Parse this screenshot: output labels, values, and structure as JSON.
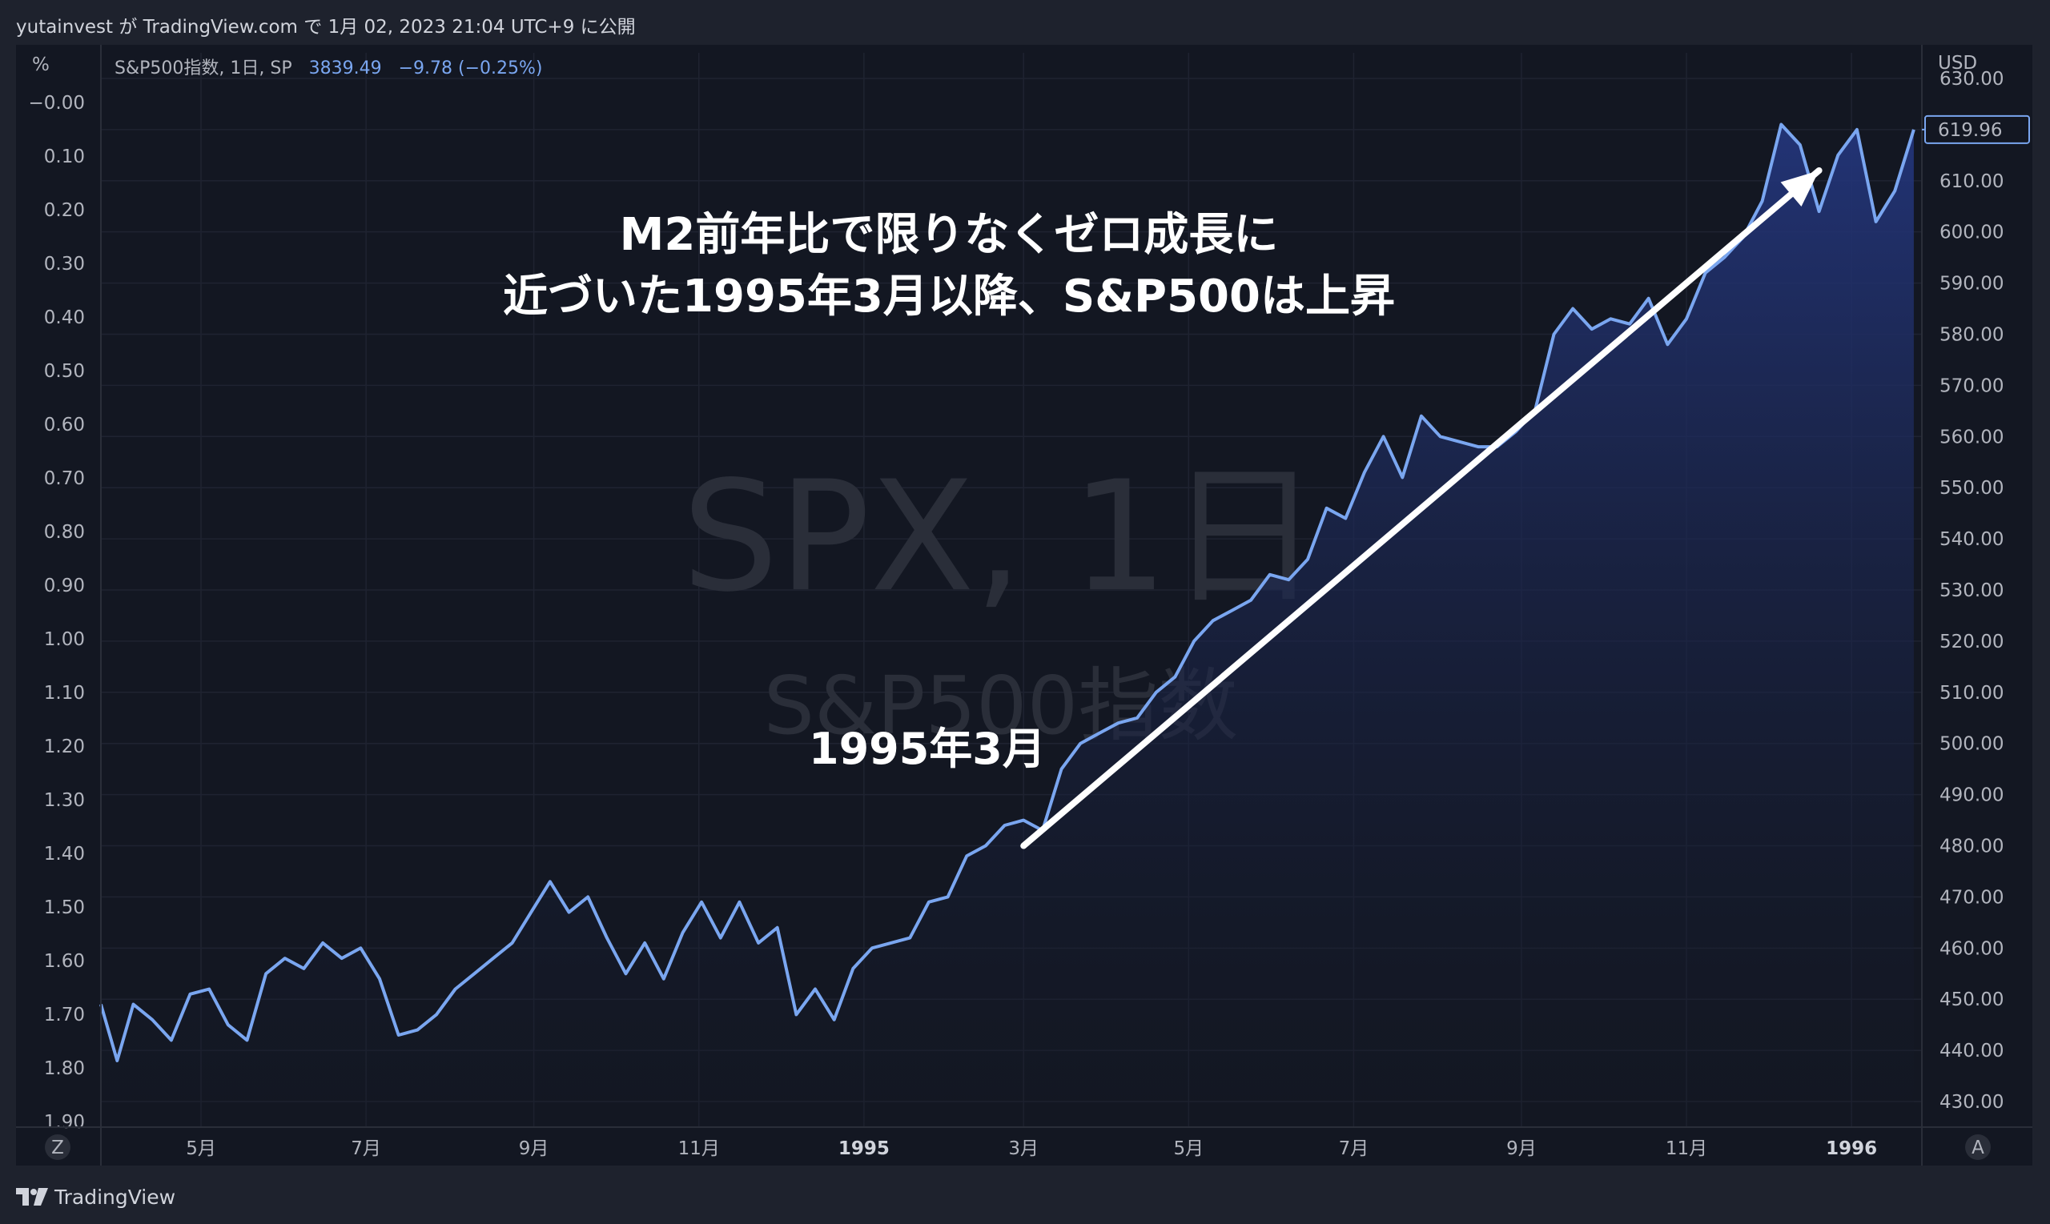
{
  "header": {
    "publisher_line": "yutainvest が TradingView.com で 1月 02, 2023 21:04 UTC+9 に公開"
  },
  "legend": {
    "symbol": "S&P500指数, 1日, SP",
    "last": "3839.49",
    "change": "−9.78 (−0.25%)"
  },
  "watermark": {
    "main": "SPX, 1日",
    "sub": "S&P500指数"
  },
  "left_axis": {
    "unit": "%",
    "labels": [
      "−0.00",
      "0.10",
      "0.20",
      "0.30",
      "0.40",
      "0.50",
      "0.60",
      "0.70",
      "0.80",
      "0.90",
      "1.00",
      "1.10",
      "1.20",
      "1.30",
      "1.40",
      "1.50",
      "1.60",
      "1.70",
      "1.80",
      "1.90"
    ]
  },
  "right_axis": {
    "unit": "USD",
    "labels": [
      "630.00",
      "620.00",
      "610.00",
      "600.00",
      "590.00",
      "580.00",
      "570.00",
      "560.00",
      "550.00",
      "540.00",
      "530.00",
      "520.00",
      "510.00",
      "500.00",
      "490.00",
      "480.00",
      "470.00",
      "460.00",
      "450.00",
      "440.00",
      "430.00"
    ],
    "price_tag": "619.96"
  },
  "time_axis": {
    "labels": [
      {
        "text": "5月",
        "bold": false
      },
      {
        "text": "7月",
        "bold": false
      },
      {
        "text": "9月",
        "bold": false
      },
      {
        "text": "11月",
        "bold": false
      },
      {
        "text": "1995",
        "bold": true
      },
      {
        "text": "3月",
        "bold": false
      },
      {
        "text": "5月",
        "bold": false
      },
      {
        "text": "7月",
        "bold": false
      },
      {
        "text": "9月",
        "bold": false
      },
      {
        "text": "11月",
        "bold": false
      },
      {
        "text": "1996",
        "bold": true
      }
    ],
    "left_button": "Z",
    "right_button": "A"
  },
  "annotations": {
    "headline_line1": "M2前年比で限りなくゼロ成長に",
    "headline_line2": "近づいた1995年3月以降、S&P500は上昇",
    "marker_label": "1995年3月"
  },
  "footer": {
    "brand": "TradingView"
  },
  "colors": {
    "line": "#7aa6f0",
    "area_top": "#1e3070",
    "background": "#131722",
    "legend_value": "#7aa6f0",
    "arrow": "#ffffff"
  },
  "chart_data": {
    "type": "area",
    "title": "S&P500指数, 1日, SP",
    "ylabel": "USD",
    "ylim": [
      425,
      635
    ],
    "x_unit": "trading days",
    "x_range": [
      "1994-04",
      "1996-01"
    ],
    "series": [
      {
        "name": "S&P500指数",
        "points": [
          [
            "1994-03-25",
            449
          ],
          [
            "1994-03-31",
            438
          ],
          [
            "1994-04-06",
            449
          ],
          [
            "1994-04-13",
            446
          ],
          [
            "1994-04-20",
            442
          ],
          [
            "1994-04-27",
            451
          ],
          [
            "1994-05-04",
            452
          ],
          [
            "1994-05-11",
            445
          ],
          [
            "1994-05-18",
            442
          ],
          [
            "1994-05-25",
            455
          ],
          [
            "1994-06-01",
            458
          ],
          [
            "1994-06-08",
            456
          ],
          [
            "1994-06-15",
            461
          ],
          [
            "1994-06-22",
            458
          ],
          [
            "1994-06-29",
            460
          ],
          [
            "1994-07-06",
            454
          ],
          [
            "1994-07-13",
            443
          ],
          [
            "1994-07-20",
            444
          ],
          [
            "1994-07-27",
            447
          ],
          [
            "1994-08-03",
            452
          ],
          [
            "1994-08-10",
            455
          ],
          [
            "1994-08-17",
            458
          ],
          [
            "1994-08-24",
            461
          ],
          [
            "1994-08-31",
            467
          ],
          [
            "1994-09-07",
            473
          ],
          [
            "1994-09-14",
            467
          ],
          [
            "1994-09-21",
            470
          ],
          [
            "1994-09-28",
            462
          ],
          [
            "1994-10-05",
            455
          ],
          [
            "1994-10-12",
            461
          ],
          [
            "1994-10-19",
            454
          ],
          [
            "1994-10-26",
            463
          ],
          [
            "1994-11-02",
            469
          ],
          [
            "1994-11-09",
            462
          ],
          [
            "1994-11-16",
            469
          ],
          [
            "1994-11-23",
            461
          ],
          [
            "1994-11-30",
            464
          ],
          [
            "1994-12-07",
            447
          ],
          [
            "1994-12-14",
            452
          ],
          [
            "1994-12-21",
            446
          ],
          [
            "1994-12-28",
            456
          ],
          [
            "1995-01-04",
            460
          ],
          [
            "1995-01-11",
            461
          ],
          [
            "1995-01-18",
            462
          ],
          [
            "1995-01-25",
            469
          ],
          [
            "1995-02-01",
            470
          ],
          [
            "1995-02-08",
            478
          ],
          [
            "1995-02-15",
            480
          ],
          [
            "1995-02-22",
            484
          ],
          [
            "1995-03-01",
            485
          ],
          [
            "1995-03-08",
            483
          ],
          [
            "1995-03-15",
            495
          ],
          [
            "1995-03-22",
            500
          ],
          [
            "1995-03-29",
            502
          ],
          [
            "1995-04-05",
            504
          ],
          [
            "1995-04-12",
            505
          ],
          [
            "1995-04-19",
            510
          ],
          [
            "1995-04-26",
            513
          ],
          [
            "1995-05-03",
            520
          ],
          [
            "1995-05-10",
            524
          ],
          [
            "1995-05-17",
            526
          ],
          [
            "1995-05-24",
            528
          ],
          [
            "1995-05-31",
            533
          ],
          [
            "1995-06-07",
            532
          ],
          [
            "1995-06-14",
            536
          ],
          [
            "1995-06-21",
            546
          ],
          [
            "1995-06-28",
            544
          ],
          [
            "1995-07-05",
            553
          ],
          [
            "1995-07-12",
            560
          ],
          [
            "1995-07-19",
            552
          ],
          [
            "1995-07-26",
            564
          ],
          [
            "1995-08-02",
            560
          ],
          [
            "1995-08-09",
            559
          ],
          [
            "1995-08-16",
            558
          ],
          [
            "1995-08-23",
            558
          ],
          [
            "1995-08-30",
            561
          ],
          [
            "1995-09-06",
            565
          ],
          [
            "1995-09-13",
            580
          ],
          [
            "1995-09-20",
            585
          ],
          [
            "1995-09-27",
            581
          ],
          [
            "1995-10-04",
            583
          ],
          [
            "1995-10-11",
            582
          ],
          [
            "1995-10-18",
            587
          ],
          [
            "1995-10-25",
            578
          ],
          [
            "1995-11-01",
            583
          ],
          [
            "1995-11-08",
            592
          ],
          [
            "1995-11-15",
            595
          ],
          [
            "1995-11-22",
            599
          ],
          [
            "1995-11-29",
            606
          ],
          [
            "1995-12-06",
            621
          ],
          [
            "1995-12-13",
            617
          ],
          [
            "1995-12-20",
            604
          ],
          [
            "1995-12-27",
            615
          ],
          [
            "1996-01-03",
            620
          ],
          [
            "1996-01-10",
            602
          ],
          [
            "1996-01-17",
            608
          ],
          [
            "1996-01-24",
            620
          ]
        ]
      }
    ],
    "annotation_arrow": {
      "from": [
        "1995-03-01",
        480
      ],
      "to": [
        "1995-12-20",
        612
      ]
    },
    "grid": true,
    "left_scale": "percent",
    "right_scale": "price"
  }
}
